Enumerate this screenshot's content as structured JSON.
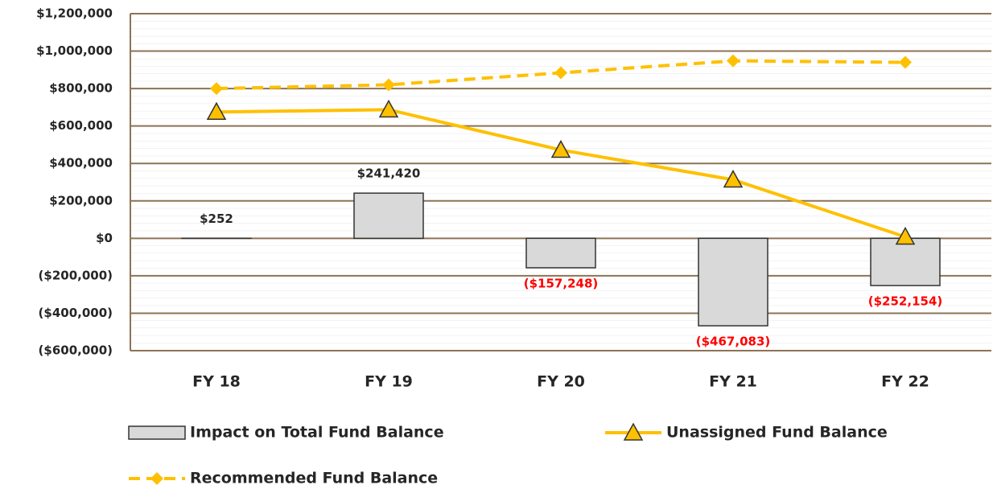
{
  "chart_data": {
    "type": "bar_line",
    "categories": [
      "FY 18",
      "FY 19",
      "FY 20",
      "FY 21",
      "FY 22"
    ],
    "series": [
      {
        "name": "Impact on Total Fund Balance",
        "type": "bar",
        "color": "#d9d9d9",
        "values": [
          252,
          241420,
          -157248,
          -467083,
          -252154
        ],
        "value_labels": [
          "$252",
          "$241,420",
          "($157,248)",
          "($467,083)",
          "($252,154)"
        ]
      },
      {
        "name": "Unassigned Fund Balance",
        "type": "line",
        "color": "#ffc000",
        "marker": "triangle",
        "values": [
          675000,
          687000,
          472000,
          313000,
          8000
        ]
      },
      {
        "name": "Recommended Fund Balance",
        "type": "line",
        "color": "#ffc000",
        "dashed": true,
        "marker": "diamond",
        "values": [
          800000,
          820000,
          884000,
          948000,
          940000
        ]
      }
    ],
    "negative_label_color": "#ff0000",
    "ylim": [
      -600000,
      1200000
    ],
    "yticks": [
      {
        "value": -600000,
        "label": "($600,000)"
      },
      {
        "value": -400000,
        "label": "($400,000)"
      },
      {
        "value": -200000,
        "label": "($200,000)"
      },
      {
        "value": 0,
        "label": "$0"
      },
      {
        "value": 200000,
        "label": "$200,000"
      },
      {
        "value": 400000,
        "label": "$400,000"
      },
      {
        "value": 600000,
        "label": "$600,000"
      },
      {
        "value": 800000,
        "label": "$800,000"
      },
      {
        "value": 1000000,
        "label": "$1,000,000"
      },
      {
        "value": 1200000,
        "label": "$1,200,000"
      }
    ],
    "grid": true
  }
}
